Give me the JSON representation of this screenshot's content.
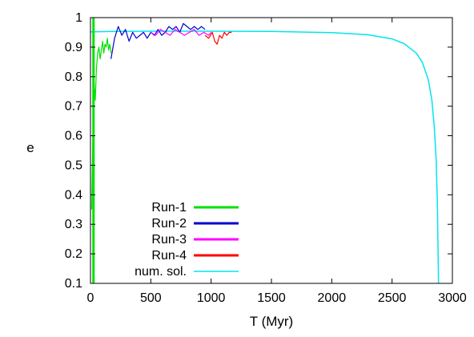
{
  "chart_data": {
    "type": "line",
    "title": "",
    "xlabel": "T (Myr)",
    "ylabel": "e",
    "xlim": [
      0,
      3000
    ],
    "ylim": [
      0.1,
      1.0
    ],
    "xticks": [
      "0",
      "500",
      "1000",
      "1500",
      "2000",
      "2500",
      "3000"
    ],
    "yticks": [
      "0.1",
      "0.2",
      "0.3",
      "0.4",
      "0.5",
      "0.6",
      "0.7",
      "0.8",
      "0.9",
      "1"
    ],
    "grid": false,
    "legend_position": "bottom-left",
    "series": [
      {
        "name": "Run-1",
        "color": "#00e000",
        "x": [
          10,
          20,
          30,
          40,
          50,
          60,
          70,
          80,
          90,
          100,
          110,
          120,
          130,
          140,
          150,
          160,
          170
        ],
        "y": [
          0.35,
          0.6,
          0.78,
          0.72,
          0.83,
          0.88,
          0.9,
          0.86,
          0.89,
          0.92,
          0.88,
          0.91,
          0.9,
          0.93,
          0.89,
          0.91,
          0.88
        ]
      },
      {
        "name": "Run-2",
        "color": "#0000cc",
        "x": [
          170,
          200,
          230,
          260,
          290,
          320,
          350,
          380,
          410,
          440,
          470,
          500,
          530,
          560,
          590,
          620,
          650,
          680,
          710,
          740,
          770,
          800,
          830,
          860,
          890,
          920,
          950
        ],
        "y": [
          0.86,
          0.93,
          0.97,
          0.94,
          0.96,
          0.92,
          0.95,
          0.93,
          0.94,
          0.95,
          0.93,
          0.95,
          0.94,
          0.96,
          0.94,
          0.95,
          0.97,
          0.96,
          0.97,
          0.95,
          0.98,
          0.97,
          0.96,
          0.97,
          0.96,
          0.97,
          0.96
        ]
      },
      {
        "name": "Run-3",
        "color": "#ff00ff",
        "x": [
          500,
          540,
          580,
          620,
          660,
          700,
          740,
          780,
          820,
          860,
          900,
          940,
          980,
          1000
        ],
        "y": [
          0.95,
          0.94,
          0.96,
          0.95,
          0.94,
          0.96,
          0.95,
          0.94,
          0.95,
          0.96,
          0.94,
          0.95,
          0.94,
          0.95
        ]
      },
      {
        "name": "Run-4",
        "color": "#ff0000",
        "x": [
          950,
          980,
          1010,
          1030,
          1050,
          1070,
          1090,
          1110,
          1130,
          1150,
          1170
        ],
        "y": [
          0.94,
          0.93,
          0.95,
          0.92,
          0.91,
          0.94,
          0.93,
          0.95,
          0.94,
          0.95,
          0.95
        ]
      },
      {
        "name": "num. sol.",
        "color": "#00e5ee",
        "x": [
          0,
          200,
          500,
          1000,
          1500,
          2000,
          2300,
          2500,
          2600,
          2700,
          2750,
          2800,
          2830,
          2850,
          2865,
          2875,
          2880,
          2885
        ],
        "y": [
          0.952,
          0.953,
          0.954,
          0.954,
          0.953,
          0.949,
          0.942,
          0.928,
          0.912,
          0.88,
          0.85,
          0.79,
          0.72,
          0.63,
          0.52,
          0.38,
          0.25,
          0.1
        ]
      }
    ],
    "legend_entries": [
      "Run-1",
      "Run-2",
      "Run-3",
      "Run-4",
      "num. sol."
    ]
  }
}
